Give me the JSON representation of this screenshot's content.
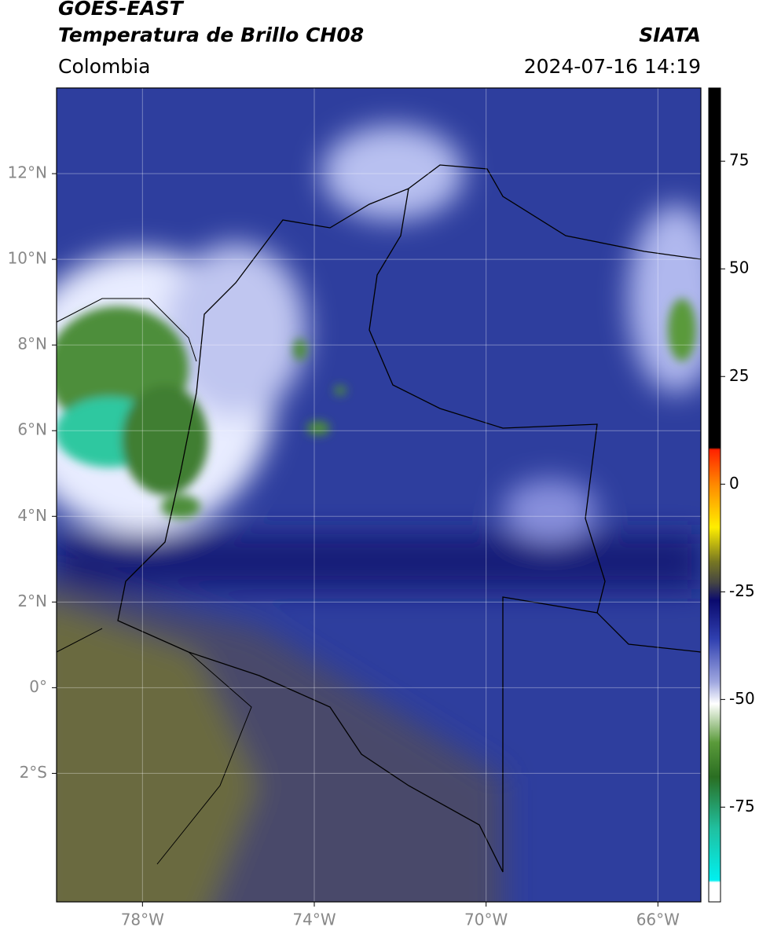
{
  "header": {
    "title": "GOES-EAST",
    "subtitle": "Temperatura de Brillo CH08",
    "source": "SIATA",
    "region": "Colombia",
    "datetime": "2024-07-16 14:19"
  },
  "map": {
    "xlim": [
      -80,
      -65
    ],
    "ylim": [
      -5,
      14
    ],
    "xticks": [
      {
        "value": -78,
        "label": "78°W"
      },
      {
        "value": -74,
        "label": "74°W"
      },
      {
        "value": -70,
        "label": "70°W"
      },
      {
        "value": -66,
        "label": "66°W"
      }
    ],
    "yticks": [
      {
        "value": 12,
        "label": "12°N"
      },
      {
        "value": 10,
        "label": "10°N"
      },
      {
        "value": 8,
        "label": "8°N"
      },
      {
        "value": 6,
        "label": "6°N"
      },
      {
        "value": 4,
        "label": "4°N"
      },
      {
        "value": 2,
        "label": "2°N"
      },
      {
        "value": 0,
        "label": "0°"
      },
      {
        "value": -2,
        "label": "2°S"
      }
    ],
    "grid": true,
    "colorbar": {
      "clim": [
        -97,
        92
      ],
      "ticks": [
        75,
        50,
        25,
        0,
        -25,
        -50,
        -75
      ],
      "colormap": [
        {
          "value": 92,
          "color": "#000000"
        },
        {
          "value": 8.5,
          "color": "#000000"
        },
        {
          "value": 8,
          "color": "#ff2200"
        },
        {
          "value": 0,
          "color": "#ff8800"
        },
        {
          "value": -10,
          "color": "#ffee00"
        },
        {
          "value": -18,
          "color": "#777722"
        },
        {
          "value": -23,
          "color": "#444444"
        },
        {
          "value": -27,
          "color": "#0a0a6e"
        },
        {
          "value": -36,
          "color": "#3040b0"
        },
        {
          "value": -46,
          "color": "#a0a8e0"
        },
        {
          "value": -51,
          "color": "#ffffff"
        },
        {
          "value": -60,
          "color": "#5a9a3a"
        },
        {
          "value": -68,
          "color": "#2a6e22"
        },
        {
          "value": -80,
          "color": "#20c0a0"
        },
        {
          "value": -92,
          "color": "#00f0f0"
        },
        {
          "value": -92.5,
          "color": "#ffffff"
        },
        {
          "value": -97,
          "color": "#ffffff"
        }
      ]
    }
  }
}
